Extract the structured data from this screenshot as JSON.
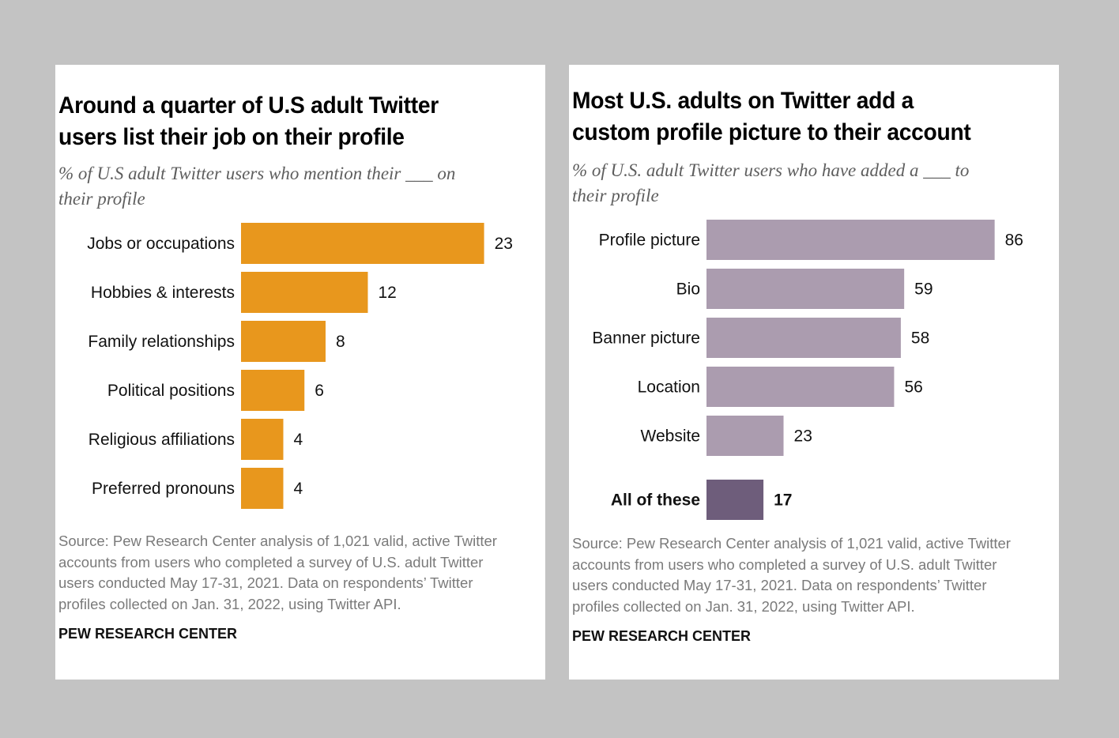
{
  "panels": [
    {
      "title_line1": "Around a quarter of U.S adult Twitter",
      "title_line2": "users list their job on their profile",
      "subtitle_line1": "% of U.S adult Twitter users who mention their ___ on",
      "subtitle_line2": "their profile",
      "source_line1": "Source: Pew Research Center analysis of 1,021 valid, active Twitter",
      "source_line2": "accounts from users who completed a survey of U.S. adult Twitter",
      "source_line3": "users conducted May 17-31, 2021. Data on respondents’ Twitter",
      "source_line4": "profiles collected on Jan. 31, 2022, using Twitter API.",
      "brand": "PEW RESEARCH CENTER"
    },
    {
      "title_line1": "Most U.S. adults on Twitter add a",
      "title_line2": "custom profile picture to their account",
      "subtitle_line1": "% of U.S. adult Twitter users who have added a ___ to",
      "subtitle_line2": "their profile",
      "source_line1": "Source: Pew Research Center analysis of 1,021 valid, active Twitter",
      "source_line2": "accounts from users who completed a survey of U.S. adult Twitter",
      "source_line3": "users conducted May 17-31, 2021. Data on respondents’ Twitter",
      "source_line4": "profiles collected on Jan. 31, 2022, using Twitter API.",
      "brand": "PEW RESEARCH CENTER"
    }
  ],
  "chart_data": [
    {
      "type": "bar",
      "orientation": "horizontal",
      "title": "Around a quarter of U.S adult Twitter users list their job on their profile",
      "categories": [
        "Jobs or occupations",
        "Hobbies & interests",
        "Family relationships",
        "Political positions",
        "Religious affiliations",
        "Preferred pronouns"
      ],
      "values": [
        23,
        12,
        8,
        6,
        4,
        4
      ],
      "labels": [
        "23",
        "12",
        "8",
        "6",
        "4",
        "4"
      ],
      "bold": [
        false,
        false,
        false,
        false,
        false,
        false
      ],
      "colors": [
        "#e8971d",
        "#e8971d",
        "#e8971d",
        "#e8971d",
        "#e8971d",
        "#e8971d"
      ],
      "xlim": [
        0,
        25.2
      ],
      "grid": false
    },
    {
      "type": "bar",
      "orientation": "horizontal",
      "title": "Most U.S. adults on Twitter add a custom profile picture to their account",
      "categories": [
        "Profile picture",
        "Bio",
        "Banner picture",
        "Location",
        "Website",
        "All of these"
      ],
      "values": [
        86,
        59,
        58,
        56,
        23,
        17
      ],
      "labels": [
        "86",
        "59",
        "58",
        "56",
        "23",
        "17"
      ],
      "bold": [
        false,
        false,
        false,
        false,
        false,
        true
      ],
      "colors": [
        "#ab9caf",
        "#ab9caf",
        "#ab9caf",
        "#ab9caf",
        "#ab9caf",
        "#6e5d7b"
      ],
      "xlim": [
        0,
        100
      ],
      "grid": false
    }
  ]
}
